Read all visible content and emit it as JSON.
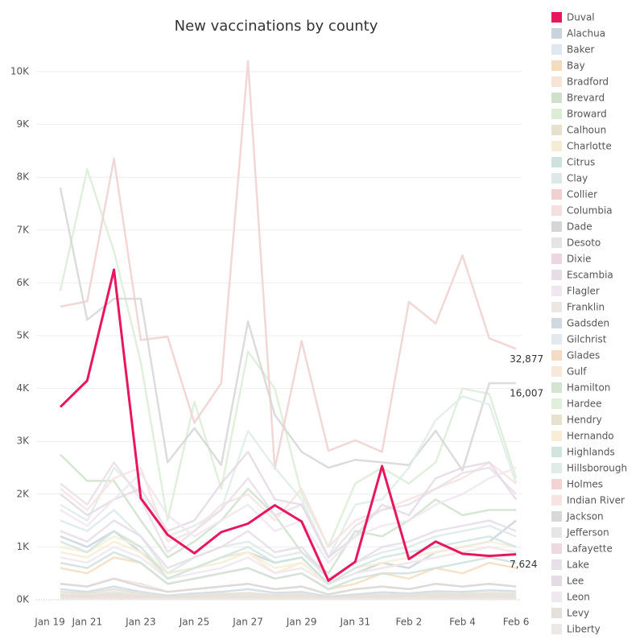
{
  "chart_data": {
    "type": "line",
    "title": "New vaccinations by county",
    "x_start_label": "Jan 19",
    "categories": [
      null,
      "Jan 21",
      null,
      "Jan 23",
      null,
      "Jan 25",
      null,
      "Jan 27",
      null,
      "Jan 29",
      null,
      "Jan 31",
      null,
      "Feb 2",
      null,
      "Feb 4",
      null,
      "Feb 6"
    ],
    "ylim": [
      0,
      10000
    ],
    "yticks": [
      {
        "value": 0,
        "label": "0K"
      },
      {
        "value": 1000,
        "label": "1K"
      },
      {
        "value": 2000,
        "label": "2K"
      },
      {
        "value": 3000,
        "label": "3K"
      },
      {
        "value": 4000,
        "label": "4K"
      },
      {
        "value": 5000,
        "label": "5K"
      },
      {
        "value": 6000,
        "label": "6K"
      },
      {
        "value": 7000,
        "label": "7K"
      },
      {
        "value": 8000,
        "label": "8K"
      },
      {
        "value": 9000,
        "label": "9K"
      },
      {
        "value": 10000,
        "label": "10K"
      }
    ],
    "grid": true,
    "highlight": "Duval",
    "annotations": [
      {
        "text": "32,877",
        "series": "Collier"
      },
      {
        "text": "16,007",
        "series": "Dade"
      },
      {
        "text": "7,624",
        "series": "Duval"
      }
    ],
    "series": [
      {
        "name": "Duval",
        "color": "#e8175d",
        "values": [
          3650,
          4150,
          6250,
          1920,
          1230,
          880,
          1280,
          1440,
          1790,
          1480,
          360,
          720,
          2530,
          770,
          1100,
          870,
          830,
          860
        ]
      },
      {
        "name": "Alachua",
        "color": "#c9d3dd",
        "values": [
          1200,
          1000,
          1300,
          900,
          500,
          600,
          800,
          900,
          700,
          800,
          300,
          500,
          700,
          600,
          900,
          1000,
          1100,
          1500
        ]
      },
      {
        "name": "Baker",
        "color": "#dfe8f1",
        "values": [
          100,
          80,
          120,
          60,
          40,
          50,
          70,
          60,
          50,
          60,
          30,
          40,
          60,
          50,
          70,
          60,
          80,
          70
        ]
      },
      {
        "name": "Bay",
        "color": "#f4dcc0",
        "values": [
          600,
          500,
          800,
          700,
          300,
          400,
          500,
          600,
          400,
          500,
          200,
          300,
          500,
          400,
          600,
          500,
          700,
          600
        ]
      },
      {
        "name": "Bradford",
        "color": "#f7e4d6",
        "values": [
          150,
          120,
          200,
          100,
          60,
          80,
          100,
          120,
          90,
          100,
          50,
          70,
          90,
          80,
          110,
          100,
          120,
          100
        ]
      },
      {
        "name": "Brevard",
        "color": "#cfe0cc",
        "values": [
          2750,
          2250,
          2250,
          1500,
          800,
          1100,
          1500,
          2100,
          1600,
          900,
          500,
          1300,
          1200,
          1500,
          1900,
          1600,
          1700,
          1700
        ]
      },
      {
        "name": "Broward",
        "color": "#dcedd6",
        "values": [
          5850,
          8150,
          6600,
          4500,
          1500,
          3750,
          2100,
          4700,
          4000,
          2000,
          1000,
          2200,
          2500,
          2200,
          2600,
          4000,
          3900,
          2300
        ]
      },
      {
        "name": "Calhoun",
        "color": "#e6e0cc",
        "values": [
          50,
          40,
          60,
          30,
          20,
          30,
          40,
          30,
          30,
          40,
          20,
          20,
          30,
          30,
          40,
          30,
          40,
          30
        ]
      },
      {
        "name": "Charlotte",
        "color": "#f6ecd3",
        "values": [
          900,
          800,
          1100,
          900,
          400,
          600,
          700,
          900,
          500,
          700,
          300,
          500,
          600,
          700,
          800,
          900,
          1000,
          900
        ]
      },
      {
        "name": "Citrus",
        "color": "#cfe1dc",
        "values": [
          700,
          600,
          900,
          700,
          300,
          400,
          500,
          600,
          400,
          500,
          200,
          400,
          500,
          500,
          600,
          700,
          800,
          700
        ]
      },
      {
        "name": "Clay",
        "color": "#dde9e6",
        "values": [
          1500,
          1300,
          1700,
          1200,
          500,
          800,
          1000,
          1100,
          800,
          900,
          400,
          700,
          900,
          1000,
          1200,
          1300,
          1400,
          1200
        ]
      },
      {
        "name": "Collier",
        "color": "#f0d0d0",
        "values": [
          5550,
          5650,
          8350,
          4920,
          4980,
          3350,
          4100,
          10200,
          2480,
          4900,
          2820,
          3020,
          2800,
          5640,
          5230,
          6520,
          4950,
          4750
        ]
      },
      {
        "name": "Columbia",
        "color": "#f6dfe0",
        "values": [
          300,
          250,
          400,
          300,
          150,
          200,
          250,
          300,
          200,
          250,
          100,
          200,
          250,
          200,
          300,
          250,
          300,
          250
        ]
      },
      {
        "name": "Dade",
        "color": "#d6d6d6",
        "values": [
          7800,
          5300,
          5700,
          5700,
          2600,
          3250,
          2550,
          5270,
          3500,
          2800,
          2500,
          2650,
          2600,
          2550,
          3200,
          2450,
          4100,
          4100
        ]
      },
      {
        "name": "Desoto",
        "color": "#e4e4e4",
        "values": [
          100,
          90,
          150,
          80,
          50,
          60,
          80,
          90,
          70,
          80,
          40,
          60,
          70,
          60,
          80,
          90,
          100,
          90
        ]
      },
      {
        "name": "Dixie",
        "color": "#edd6df",
        "values": [
          40,
          30,
          50,
          30,
          20,
          20,
          30,
          30,
          20,
          30,
          10,
          20,
          30,
          20,
          30,
          30,
          40,
          30
        ]
      },
      {
        "name": "Escambia",
        "color": "#e6dde6",
        "values": [
          1300,
          1100,
          1500,
          1200,
          600,
          800,
          1000,
          1300,
          900,
          1000,
          400,
          700,
          1000,
          1100,
          1300,
          1400,
          1500,
          1300
        ]
      },
      {
        "name": "Flagler",
        "color": "#efe6ef",
        "values": [
          800,
          700,
          1000,
          800,
          400,
          500,
          600,
          800,
          500,
          600,
          300,
          500,
          600,
          700,
          800,
          900,
          1000,
          900
        ]
      },
      {
        "name": "Franklin",
        "color": "#ece7e3",
        "values": [
          30,
          20,
          40,
          20,
          10,
          20,
          30,
          20,
          20,
          20,
          10,
          20,
          20,
          20,
          30,
          20,
          30,
          20
        ]
      },
      {
        "name": "Gadsden",
        "color": "#cfd9e2",
        "values": [
          200,
          150,
          250,
          150,
          80,
          120,
          150,
          200,
          130,
          150,
          60,
          100,
          140,
          120,
          160,
          150,
          180,
          160
        ]
      },
      {
        "name": "Gilchrist",
        "color": "#e2e9ef",
        "values": [
          60,
          50,
          80,
          40,
          30,
          40,
          50,
          50,
          40,
          50,
          20,
          30,
          40,
          40,
          50,
          50,
          60,
          50
        ]
      },
      {
        "name": "Glades",
        "color": "#f4dcc4",
        "values": [
          30,
          20,
          40,
          20,
          10,
          20,
          20,
          30,
          20,
          20,
          10,
          20,
          20,
          20,
          30,
          20,
          30,
          20
        ]
      },
      {
        "name": "Gulf",
        "color": "#f8e8da",
        "values": [
          50,
          40,
          60,
          40,
          20,
          30,
          40,
          40,
          30,
          40,
          20,
          30,
          30,
          30,
          40,
          40,
          50,
          40
        ]
      },
      {
        "name": "Hamilton",
        "color": "#d4e4d0",
        "values": [
          40,
          30,
          50,
          30,
          20,
          20,
          30,
          30,
          20,
          30,
          10,
          20,
          30,
          30,
          30,
          30,
          40,
          30
        ]
      },
      {
        "name": "Hardee",
        "color": "#e0efda",
        "values": [
          80,
          60,
          100,
          60,
          30,
          40,
          60,
          60,
          50,
          60,
          20,
          40,
          50,
          50,
          60,
          60,
          70,
          60
        ]
      },
      {
        "name": "Hendry",
        "color": "#e7e2cd",
        "values": [
          90,
          70,
          110,
          70,
          40,
          50,
          70,
          70,
          50,
          70,
          30,
          50,
          60,
          60,
          70,
          70,
          80,
          70
        ]
      },
      {
        "name": "Hernando",
        "color": "#f7eed5",
        "values": [
          1000,
          900,
          1200,
          1000,
          500,
          600,
          800,
          900,
          600,
          700,
          300,
          600,
          700,
          800,
          900,
          1000,
          1100,
          1000
        ]
      },
      {
        "name": "Highlands",
        "color": "#d1e4de",
        "values": [
          1100,
          900,
          1300,
          1000,
          400,
          600,
          800,
          1000,
          700,
          800,
          300,
          600,
          800,
          900,
          1000,
          1100,
          1200,
          1000
        ]
      },
      {
        "name": "Hillsborough",
        "color": "#dfece8",
        "values": [
          1800,
          1500,
          2500,
          2000,
          1200,
          1400,
          1700,
          3200,
          2500,
          1900,
          800,
          1800,
          1900,
          2500,
          3400,
          3850,
          3700,
          2200
        ]
      },
      {
        "name": "Holmes",
        "color": "#f2d4d4",
        "values": [
          60,
          50,
          70,
          40,
          20,
          30,
          40,
          40,
          30,
          40,
          20,
          30,
          40,
          30,
          40,
          40,
          50,
          40
        ]
      },
      {
        "name": "Indian River",
        "color": "#f8e2e2",
        "values": [
          2100,
          1700,
          2300,
          2500,
          1100,
          1300,
          1800,
          2000,
          1500,
          2100,
          1000,
          1500,
          1700,
          1900,
          2100,
          2300,
          2600,
          2200
        ]
      },
      {
        "name": "Jackson",
        "color": "#d8d8d8",
        "values": [
          300,
          250,
          400,
          250,
          150,
          200,
          250,
          300,
          200,
          250,
          100,
          200,
          250,
          200,
          300,
          250,
          300,
          250
        ]
      },
      {
        "name": "Jefferson",
        "color": "#e6e6e6",
        "values": [
          50,
          40,
          60,
          30,
          20,
          30,
          40,
          40,
          30,
          40,
          20,
          30,
          30,
          30,
          40,
          40,
          50,
          40
        ]
      },
      {
        "name": "Lafayette",
        "color": "#eed8e1",
        "values": [
          20,
          20,
          30,
          20,
          10,
          10,
          20,
          20,
          10,
          20,
          10,
          10,
          20,
          10,
          20,
          20,
          20,
          20
        ]
      },
      {
        "name": "Lake",
        "color": "#e8e0e8",
        "values": [
          2200,
          1800,
          2600,
          1900,
          900,
          1300,
          1700,
          2300,
          1600,
          1800,
          800,
          1400,
          1700,
          1800,
          2100,
          2400,
          2500,
          2000
        ]
      },
      {
        "name": "Lee",
        "color": "#e4dbe4",
        "values": [
          2000,
          1600,
          1900,
          2100,
          1300,
          1500,
          2200,
          2800,
          1900,
          1800,
          800,
          1200,
          1800,
          1600,
          2300,
          2500,
          2600,
          1900
        ]
      },
      {
        "name": "Leon",
        "color": "#efe8ef",
        "values": [
          1700,
          1400,
          1900,
          2400,
          1600,
          1200,
          1500,
          1800,
          1300,
          1500,
          700,
          1200,
          1400,
          1500,
          1800,
          2000,
          2300,
          2500
        ]
      },
      {
        "name": "Levy",
        "color": "#e4e0dc",
        "values": [
          150,
          120,
          200,
          120,
          60,
          90,
          110,
          130,
          90,
          110,
          50,
          80,
          100,
          90,
          120,
          110,
          130,
          120
        ]
      },
      {
        "name": "Liberty",
        "color": "#ece8e6",
        "values": [
          20,
          10,
          20,
          10,
          10,
          10,
          10,
          10,
          10,
          10,
          10,
          10,
          10,
          10,
          10,
          10,
          20,
          10
        ]
      }
    ]
  }
}
